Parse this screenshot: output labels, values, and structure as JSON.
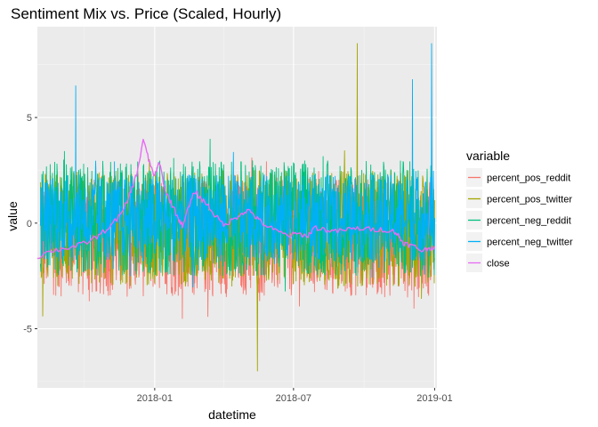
{
  "chart_data": {
    "type": "line",
    "title": "Sentiment Mix vs. Price (Scaled, Hourly)",
    "xlabel": "datetime",
    "ylabel": "value",
    "x_ticks": [
      "2018-01",
      "2018-07",
      "2019-01"
    ],
    "y_ticks": [
      "-5",
      "0",
      "5"
    ],
    "xlim": [
      "2017-08-01",
      "2019-01-04"
    ],
    "ylim": [
      -7.8,
      9.3
    ],
    "grid": true,
    "legend": {
      "title": "variable",
      "position": "right"
    },
    "series": [
      {
        "name": "percent_pos_reddit",
        "color": "#F8766D",
        "typical_range": [
          -3.5,
          2.2
        ],
        "notes": "hourly noise around 0; downward spikes to about -4.5"
      },
      {
        "name": "percent_pos_twitter",
        "color": "#A3A500",
        "typical_range": [
          -3.0,
          2.5
        ],
        "spikes": [
          {
            "x": "2018-05-15",
            "y": -7.0
          },
          {
            "x": "2018-09-22",
            "y": 8.5
          },
          {
            "x": "2017-08-08",
            "y": -4.4
          }
        ]
      },
      {
        "name": "percent_neg_reddit",
        "color": "#00BF7D",
        "typical_range": [
          -2.5,
          3.0
        ],
        "notes": "spikes to about -4 near late 2018"
      },
      {
        "name": "percent_neg_twitter",
        "color": "#00B0F6",
        "typical_range": [
          -1.8,
          2.3
        ],
        "spikes": [
          {
            "x": "2017-09-20",
            "y": 6.5
          },
          {
            "x": "2018-12-28",
            "y": 8.5
          },
          {
            "x": "2018-12-03",
            "y": 6.8
          }
        ]
      },
      {
        "name": "close",
        "color": "#E76BF3",
        "x": [
          "2017-08-01",
          "2017-08-20",
          "2017-09-05",
          "2017-09-20",
          "2017-10-05",
          "2017-10-20",
          "2017-11-05",
          "2017-11-20",
          "2017-12-01",
          "2017-12-10",
          "2017-12-17",
          "2017-12-24",
          "2018-01-01",
          "2018-01-07",
          "2018-01-15",
          "2018-01-22",
          "2018-02-01",
          "2018-02-06",
          "2018-02-15",
          "2018-02-22",
          "2018-03-01",
          "2018-03-10",
          "2018-03-20",
          "2018-04-01",
          "2018-04-15",
          "2018-04-25",
          "2018-05-05",
          "2018-05-15",
          "2018-05-25",
          "2018-06-10",
          "2018-06-25",
          "2018-07-05",
          "2018-07-20",
          "2018-07-28",
          "2018-08-10",
          "2018-08-25",
          "2018-09-10",
          "2018-09-25",
          "2018-10-10",
          "2018-10-25",
          "2018-11-10",
          "2018-11-15",
          "2018-11-20",
          "2018-11-25",
          "2018-12-05",
          "2018-12-15",
          "2018-12-25",
          "2019-01-01"
        ],
        "y": [
          -1.6,
          -1.3,
          -1.2,
          -1.1,
          -0.9,
          -0.6,
          -0.1,
          0.5,
          1.5,
          2.5,
          4.0,
          3.0,
          2.2,
          2.9,
          1.5,
          1.0,
          0.2,
          -0.1,
          0.8,
          1.5,
          1.2,
          0.9,
          0.4,
          -0.1,
          0.2,
          0.5,
          0.6,
          0.2,
          -0.1,
          -0.4,
          -0.6,
          -0.5,
          -0.6,
          -0.2,
          -0.3,
          -0.4,
          -0.3,
          -0.25,
          -0.3,
          -0.3,
          -0.4,
          -0.6,
          -0.9,
          -1.0,
          -1.1,
          -1.3,
          -1.2,
          -1.1
        ]
      }
    ]
  }
}
